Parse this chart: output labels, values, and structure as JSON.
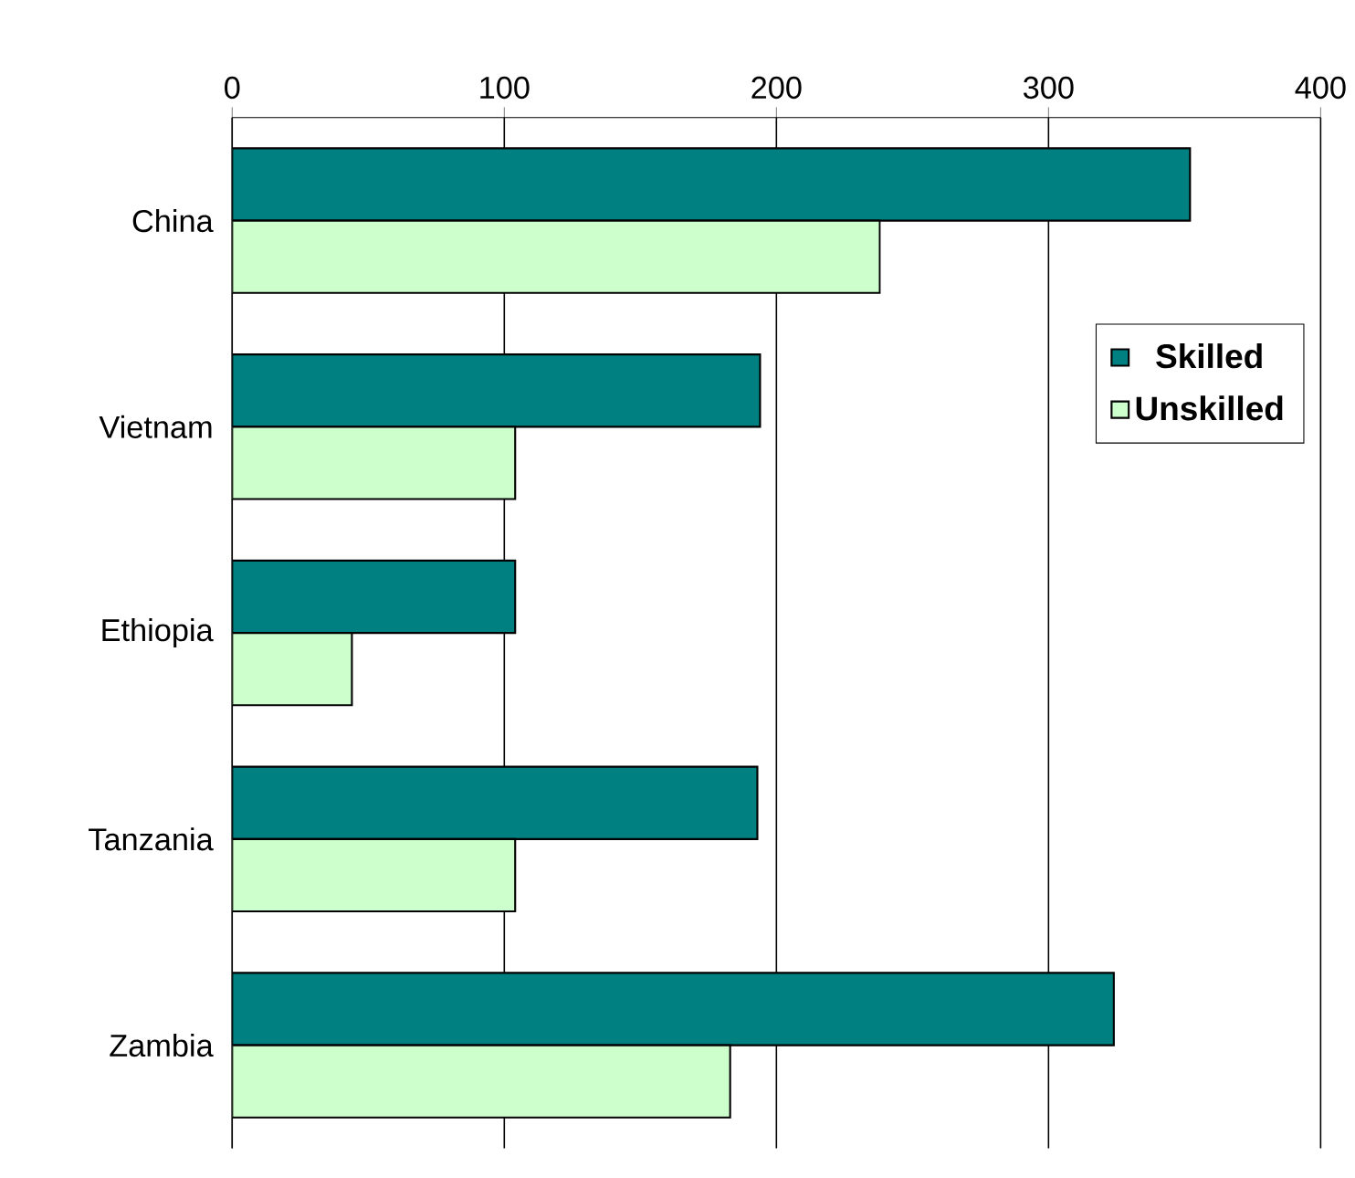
{
  "chart_data": {
    "type": "bar",
    "orientation": "horizontal",
    "categories": [
      "China",
      "Vietnam",
      "Ethiopia",
      "Tanzania",
      "Zambia"
    ],
    "series": [
      {
        "name": "Skilled",
        "color": "#008080",
        "values": [
          352,
          194,
          104,
          193,
          324
        ]
      },
      {
        "name": "Unskilled",
        "color": "#ccffcc",
        "values": [
          238,
          104,
          44,
          104,
          183
        ]
      }
    ],
    "xlim": [
      0,
      400
    ],
    "xticks": [
      0,
      100,
      200,
      300,
      400
    ],
    "grid": "x",
    "legend": "top right"
  }
}
